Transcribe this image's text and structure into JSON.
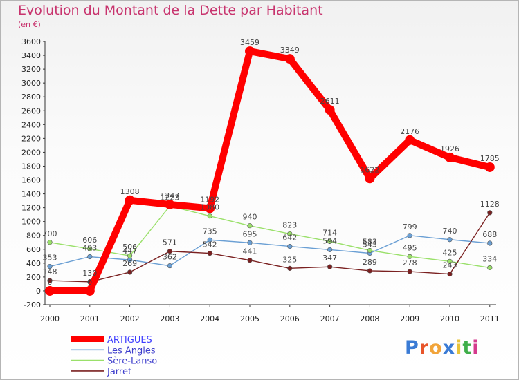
{
  "title": "Evolution du Montant de la Dette par Habitant",
  "subtitle": "(en €)",
  "logo": {
    "text": "Proxiti",
    "colors": [
      "#3a7bd5",
      "#e8552a",
      "#f1a43a",
      "#3a7bd5",
      "#e8c33a",
      "#3fae49",
      "#d53a8d"
    ]
  },
  "chart_data": {
    "type": "line",
    "x": [
      "2000",
      "2001",
      "2002",
      "2003",
      "2004",
      "2005",
      "2006",
      "2007",
      "2008",
      "2009",
      "2010",
      "2011"
    ],
    "ylim": [
      -200,
      3600
    ],
    "yticks": [
      -200,
      0,
      200,
      400,
      600,
      800,
      1000,
      1200,
      1400,
      1600,
      1800,
      2000,
      2200,
      2400,
      2600,
      2800,
      3000,
      3200,
      3400,
      3600
    ],
    "grid": false,
    "legend": "bottom-left",
    "series": [
      {
        "name": "ARTIGUES",
        "color": "#ff0000",
        "values": [
          0,
          0,
          1308,
          1247,
          1192,
          3459,
          3349,
          2611,
          1622,
          2176,
          1926,
          1785
        ],
        "labels": [
          "0",
          "0",
          "1308",
          "1247",
          "1192",
          "3459",
          "3349",
          "2611",
          "1622",
          "2176",
          "1926",
          "1785"
        ]
      },
      {
        "name": "Les Angles",
        "color": "#6a9fd4",
        "values": [
          353,
          493,
          447,
          362,
          735,
          695,
          642,
          594,
          543,
          799,
          740,
          688
        ],
        "labels": [
          "353",
          "493",
          "447",
          "362",
          "735",
          "695",
          "642",
          "594",
          "543",
          "799",
          "740",
          "688"
        ]
      },
      {
        "name": "Sère-Lanso",
        "color": "#9ae06a",
        "values": [
          700,
          606,
          506,
          1223,
          1080,
          940,
          823,
          714,
          583,
          495,
          425,
          334
        ],
        "labels": [
          "700",
          "606",
          "506",
          "1223",
          "1080",
          "940",
          "823",
          "714",
          "583",
          "495",
          "425",
          "334"
        ]
      },
      {
        "name": "Jarret",
        "color": "#7a2020",
        "values": [
          148,
          130,
          269,
          571,
          542,
          441,
          325,
          347,
          289,
          278,
          243,
          1128
        ],
        "labels": [
          "148",
          "130",
          "269",
          "571",
          "542",
          "441",
          "325",
          "347",
          "289",
          "278",
          "243",
          "1128"
        ]
      }
    ]
  }
}
